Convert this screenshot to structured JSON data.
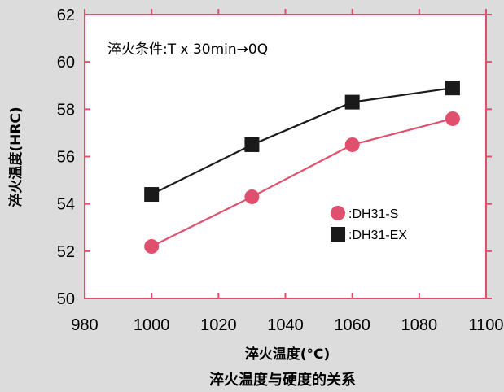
{
  "chart_data": {
    "type": "line",
    "title": "",
    "caption": "淬火温度与硬度的关系",
    "annotation": "淬火条件:T x 30min→0Q",
    "xlabel": "淬火温度(°C)",
    "ylabel": "淬火温度(HRC)",
    "xlim": [
      980,
      1100
    ],
    "ylim": [
      50,
      62
    ],
    "x_ticks": [
      980,
      1000,
      1020,
      1040,
      1060,
      1080,
      1100
    ],
    "y_ticks": [
      50,
      52,
      54,
      56,
      58,
      60,
      62
    ],
    "grid": false,
    "legend_position": "right",
    "frame_color": "#e0506e",
    "background_color": "#ffffff",
    "page_background": "#dcdcdc",
    "series": [
      {
        "name": ":DH31-S",
        "marker": "circle",
        "color": "#e0506e",
        "x": [
          1000,
          1030,
          1060,
          1090
        ],
        "values": [
          52.2,
          54.3,
          56.5,
          57.6
        ]
      },
      {
        "name": ":DH31-EX",
        "marker": "square",
        "color": "#1a1a1a",
        "x": [
          1000,
          1030,
          1060,
          1090
        ],
        "values": [
          54.4,
          56.5,
          58.3,
          58.9
        ]
      }
    ]
  }
}
